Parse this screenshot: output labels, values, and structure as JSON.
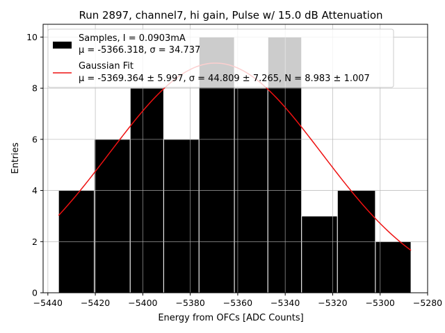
{
  "chart_data": {
    "type": "bar",
    "title": "Run 2897, channel7, hi gain, Pulse w/ 15.0 dB Attenuation",
    "xlabel": "Energy from OFCs [ADC Counts]",
    "ylabel": "Entries",
    "xlim": [
      -5442,
      -5280
    ],
    "ylim": [
      0,
      10.5
    ],
    "grid": true,
    "legend_position": "top-left",
    "x_ticks": [
      "−5440",
      "−5420",
      "−5400",
      "−5380",
      "−5360",
      "−5340",
      "−5320",
      "−5300",
      "−5280"
    ],
    "x_tick_values": [
      -5440,
      -5420,
      -5400,
      -5380,
      -5360,
      -5340,
      -5320,
      -5300,
      -5280
    ],
    "y_ticks": [
      "0",
      "2",
      "4",
      "6",
      "8",
      "10"
    ],
    "y_tick_values": [
      0,
      2,
      4,
      6,
      8,
      10
    ],
    "bin_edges": [
      -5435.5,
      -5420.4,
      -5405.3,
      -5391.2,
      -5376.3,
      -5361.4,
      -5347.3,
      -5333.1,
      -5318.0,
      -5302.0,
      -5287.0
    ],
    "counts": [
      4,
      6,
      8,
      6,
      10,
      8,
      10,
      3,
      4,
      2
    ],
    "series": [
      {
        "name": "Samples, I = 0.0903mA",
        "stats": "μ = -5366.318, σ = 34.737",
        "color": "#000000"
      },
      {
        "name": "Gaussian Fit",
        "stats": "μ = -5369.364 ± 5.997, σ = 44.809 ± 7.265, N = 8.983 ± 1.007",
        "color": "#ee1111",
        "mu": -5369.364,
        "sigma": 44.809,
        "N": 8.983,
        "x_range": [
          -5435.5,
          -5287.0
        ]
      }
    ]
  }
}
